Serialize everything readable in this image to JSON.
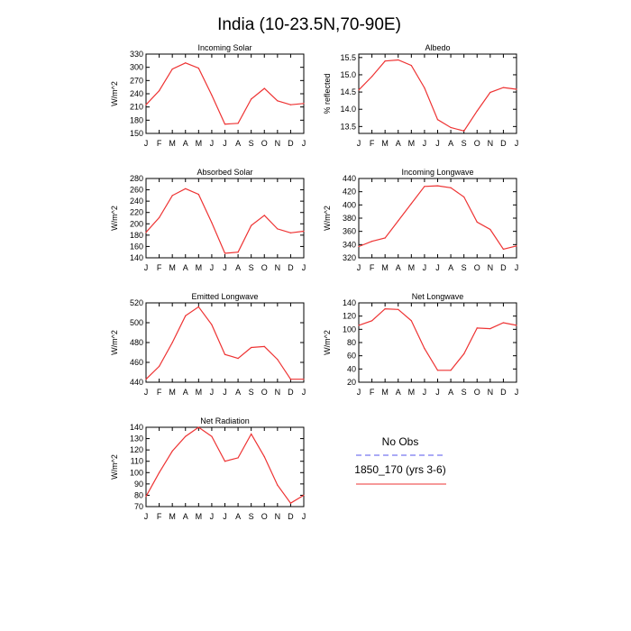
{
  "figure_title": "India (10-23.5N,70-90E)",
  "legend": {
    "entries": [
      {
        "label": "No Obs",
        "color": "#5555ee",
        "style": "dashed"
      },
      {
        "label": "1850_170 (yrs 3-6)",
        "color": "#ee3333",
        "style": "solid"
      }
    ]
  },
  "chart_data": [
    {
      "type": "line",
      "title": "Incoming Solar",
      "ylabel": "W/m^2",
      "xlabel": "",
      "categories": [
        "J",
        "F",
        "M",
        "A",
        "M",
        "J",
        "J",
        "A",
        "S",
        "O",
        "N",
        "D",
        "J"
      ],
      "ylim": [
        150,
        330
      ],
      "yticks": [
        150,
        180,
        210,
        240,
        270,
        300,
        330
      ],
      "ytick_labels": [
        "150",
        "180",
        "210",
        "240",
        "270",
        "300",
        "330"
      ],
      "series": [
        {
          "values": [
            215,
            247,
            296,
            310,
            298,
            237,
            171,
            173,
            228,
            252,
            224,
            215,
            218
          ],
          "color": "#ee3333"
        }
      ]
    },
    {
      "type": "line",
      "title": "Albedo",
      "ylabel": "% reflected",
      "xlabel": "",
      "categories": [
        "J",
        "F",
        "M",
        "A",
        "M",
        "J",
        "J",
        "A",
        "S",
        "O",
        "N",
        "D",
        "J"
      ],
      "ylim": [
        13.3,
        15.6
      ],
      "yticks": [
        13.5,
        14.0,
        14.5,
        15.0,
        15.5
      ],
      "ytick_labels": [
        "13.5",
        "14.0",
        "14.5",
        "15.0",
        "15.5"
      ],
      "series": [
        {
          "values": [
            14.56,
            14.95,
            15.4,
            15.43,
            15.27,
            14.62,
            13.7,
            13.47,
            13.37,
            13.95,
            14.49,
            14.63,
            14.58
          ],
          "color": "#ee3333"
        }
      ]
    },
    {
      "type": "line",
      "title": "Absorbed Solar",
      "ylabel": "W/m^2",
      "xlabel": "",
      "categories": [
        "J",
        "F",
        "M",
        "A",
        "M",
        "J",
        "J",
        "A",
        "S",
        "O",
        "N",
        "D",
        "J"
      ],
      "ylim": [
        140,
        280
      ],
      "yticks": [
        140,
        160,
        180,
        200,
        220,
        240,
        260,
        280
      ],
      "ytick_labels": [
        "140",
        "160",
        "180",
        "200",
        "220",
        "240",
        "260",
        "280"
      ],
      "series": [
        {
          "values": [
            185,
            211,
            250,
            262,
            252,
            202,
            148,
            150,
            197,
            215,
            191,
            184,
            187
          ],
          "color": "#ee3333"
        }
      ]
    },
    {
      "type": "line",
      "title": "Incoming Longwave",
      "ylabel": "W/m^2",
      "xlabel": "",
      "categories": [
        "J",
        "F",
        "M",
        "A",
        "M",
        "J",
        "J",
        "A",
        "S",
        "O",
        "N",
        "D",
        "J"
      ],
      "ylim": [
        320,
        440
      ],
      "yticks": [
        320,
        340,
        360,
        380,
        400,
        420,
        440
      ],
      "ytick_labels": [
        "320",
        "340",
        "360",
        "380",
        "400",
        "420",
        "440"
      ],
      "series": [
        {
          "values": [
            337,
            345,
            350,
            376,
            402,
            428,
            429,
            426,
            412,
            374,
            363,
            333,
            338
          ],
          "color": "#ee3333"
        }
      ]
    },
    {
      "type": "line",
      "title": "Emitted Longwave",
      "ylabel": "W/m^2",
      "xlabel": "",
      "categories": [
        "J",
        "F",
        "M",
        "A",
        "M",
        "J",
        "J",
        "A",
        "S",
        "O",
        "N",
        "D",
        "J"
      ],
      "ylim": [
        440,
        520
      ],
      "yticks": [
        440,
        460,
        480,
        500,
        520
      ],
      "ytick_labels": [
        "440",
        "460",
        "480",
        "500",
        "520"
      ],
      "series": [
        {
          "values": [
            443,
            456,
            480,
            507,
            516,
            498,
            468,
            464,
            475,
            476,
            463,
            443,
            443
          ],
          "color": "#ee3333"
        }
      ]
    },
    {
      "type": "line",
      "title": "Net Longwave",
      "ylabel": "W/m^2",
      "xlabel": "",
      "categories": [
        "J",
        "F",
        "M",
        "A",
        "M",
        "J",
        "J",
        "A",
        "S",
        "O",
        "N",
        "D",
        "J"
      ],
      "ylim": [
        20,
        140
      ],
      "yticks": [
        20,
        40,
        60,
        80,
        100,
        120,
        140
      ],
      "ytick_labels": [
        "20",
        "40",
        "60",
        "80",
        "100",
        "120",
        "140"
      ],
      "series": [
        {
          "values": [
            106,
            113,
            131,
            130,
            113,
            71,
            38,
            38,
            63,
            102,
            101,
            110,
            106
          ],
          "color": "#ee3333"
        }
      ]
    },
    {
      "type": "line",
      "title": "Net Radiation",
      "ylabel": "W/m^2",
      "xlabel": "",
      "categories": [
        "J",
        "F",
        "M",
        "A",
        "M",
        "J",
        "J",
        "A",
        "S",
        "O",
        "N",
        "D",
        "J"
      ],
      "ylim": [
        70,
        140
      ],
      "yticks": [
        70,
        80,
        90,
        100,
        110,
        120,
        130,
        140
      ],
      "ytick_labels": [
        "70",
        "80",
        "90",
        "100",
        "110",
        "120",
        "130",
        "140"
      ],
      "series": [
        {
          "values": [
            79,
            100,
            119,
            132,
            140,
            132,
            110,
            113,
            134,
            114,
            89,
            73,
            80
          ],
          "color": "#ee3333"
        }
      ]
    }
  ]
}
